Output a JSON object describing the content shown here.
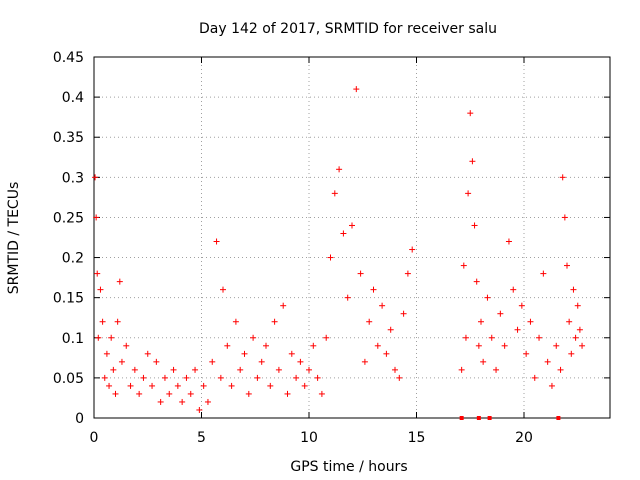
{
  "chart_data": {
    "type": "scatter",
    "title": "Day 142 of 2017, SRMTID for receiver salu",
    "xlabel": "GPS time / hours",
    "ylabel": "SRMTID / TECUs",
    "xlim": [
      0,
      24
    ],
    "ylim": [
      0,
      0.45
    ],
    "xticks": [
      0,
      5,
      10,
      15,
      20
    ],
    "xtick_labels": [
      "0",
      "5",
      "10",
      "15",
      "20"
    ],
    "yticks": [
      0,
      0.05,
      0.1,
      0.15,
      0.2,
      0.25,
      0.3,
      0.35,
      0.4,
      0.45
    ],
    "ytick_labels": [
      "0",
      "0.05",
      "0.1",
      "0.15",
      "0.2",
      "0.25",
      "0.3",
      "0.35",
      "0.4",
      "0.45"
    ],
    "grid": true,
    "marker": "+",
    "color": "#ff0000",
    "series": [
      {
        "name": "SRMTID",
        "x": [
          0.05,
          0.1,
          0.15,
          0.2,
          0.3,
          0.4,
          0.5,
          0.6,
          0.7,
          0.8,
          0.9,
          1.0,
          1.1,
          1.2,
          1.3,
          1.5,
          1.7,
          1.9,
          2.1,
          2.3,
          2.5,
          2.7,
          2.9,
          3.1,
          3.3,
          3.5,
          3.7,
          3.9,
          4.1,
          4.3,
          4.5,
          4.7,
          4.9,
          5.1,
          5.3,
          5.5,
          5.7,
          5.9,
          6.0,
          6.2,
          6.4,
          6.6,
          6.8,
          7.0,
          7.2,
          7.4,
          7.6,
          7.8,
          8.0,
          8.2,
          8.4,
          8.6,
          8.8,
          9.0,
          9.2,
          9.4,
          9.6,
          9.8,
          10.0,
          10.2,
          10.4,
          10.6,
          10.8,
          11.0,
          11.2,
          11.4,
          11.6,
          11.8,
          12.0,
          12.2,
          12.4,
          12.6,
          12.8,
          13.0,
          13.2,
          13.4,
          13.6,
          13.8,
          14.0,
          14.2,
          14.4,
          14.6,
          14.8,
          17.1,
          17.2,
          17.3,
          17.4,
          17.5,
          17.6,
          17.7,
          17.8,
          17.9,
          18.0,
          18.1,
          18.3,
          18.5,
          18.7,
          18.9,
          19.1,
          19.3,
          19.5,
          19.7,
          19.9,
          20.1,
          20.3,
          20.5,
          20.7,
          20.9,
          21.1,
          21.3,
          21.5,
          21.7,
          21.8,
          21.9,
          22.0,
          22.1,
          22.2,
          22.3,
          22.4,
          22.5,
          22.6,
          22.7
        ],
        "y": [
          0.3,
          0.25,
          0.18,
          0.1,
          0.16,
          0.12,
          0.05,
          0.08,
          0.04,
          0.1,
          0.06,
          0.03,
          0.12,
          0.17,
          0.07,
          0.09,
          0.04,
          0.06,
          0.03,
          0.05,
          0.08,
          0.04,
          0.07,
          0.02,
          0.05,
          0.03,
          0.06,
          0.04,
          0.02,
          0.05,
          0.03,
          0.06,
          0.01,
          0.04,
          0.02,
          0.07,
          0.22,
          0.05,
          0.16,
          0.09,
          0.04,
          0.12,
          0.06,
          0.08,
          0.03,
          0.1,
          0.05,
          0.07,
          0.09,
          0.04,
          0.12,
          0.06,
          0.14,
          0.03,
          0.08,
          0.05,
          0.07,
          0.04,
          0.06,
          0.09,
          0.05,
          0.03,
          0.1,
          0.2,
          0.28,
          0.31,
          0.23,
          0.15,
          0.24,
          0.41,
          0.18,
          0.07,
          0.12,
          0.16,
          0.09,
          0.14,
          0.08,
          0.11,
          0.06,
          0.05,
          0.13,
          0.18,
          0.21,
          0.06,
          0.19,
          0.1,
          0.28,
          0.38,
          0.32,
          0.24,
          0.17,
          0.09,
          0.12,
          0.07,
          0.15,
          0.1,
          0.06,
          0.13,
          0.09,
          0.22,
          0.16,
          0.11,
          0.14,
          0.08,
          0.12,
          0.05,
          0.1,
          0.18,
          0.07,
          0.04,
          0.09,
          0.06,
          0.3,
          0.25,
          0.19,
          0.12,
          0.08,
          0.16,
          0.1,
          0.14,
          0.11,
          0.09
        ],
        "zero_markers_x": [
          17.1,
          17.9,
          18.4,
          21.6
        ]
      }
    ]
  }
}
